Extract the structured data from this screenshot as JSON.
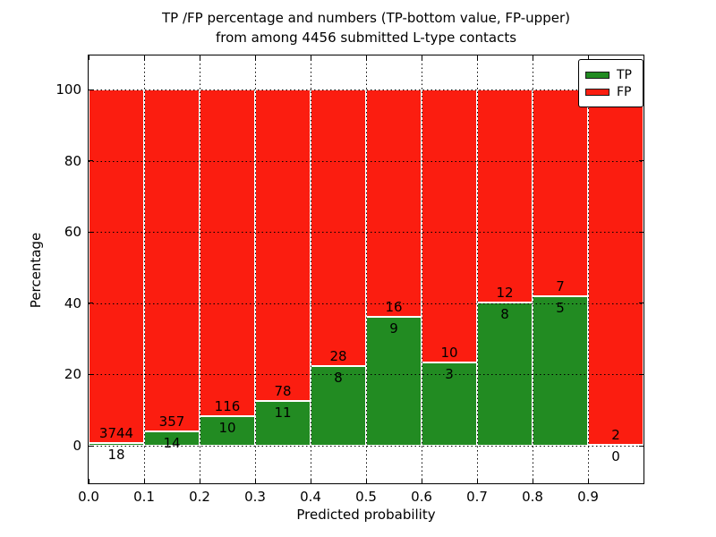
{
  "figure": {
    "title_line1": "TP /FP percentage and numbers (TP-bottom value, FP-upper)",
    "title_line2": "from among 4456 submitted L-type contacts",
    "xlabel": "Predicted probability",
    "ylabel": "Percentage"
  },
  "legend": {
    "position": "upper right",
    "items": [
      {
        "label": "TP",
        "color": "#228b22"
      },
      {
        "label": "FP",
        "color": "#fb1d10"
      }
    ]
  },
  "axis_ticks": {
    "y_labels": [
      "0",
      "20",
      "40",
      "60",
      "80",
      "100"
    ],
    "y_values": [
      0,
      20,
      40,
      60,
      80,
      100
    ],
    "x_labels": [
      "0.0",
      "0.1",
      "0.2",
      "0.3",
      "0.4",
      "0.5",
      "0.6",
      "0.7",
      "0.8",
      "0.9"
    ],
    "x_values": [
      0.0,
      0.1,
      0.2,
      0.3,
      0.4,
      0.5,
      0.6,
      0.7,
      0.8,
      0.9
    ]
  },
  "chart_data": {
    "type": "bar",
    "stacked": true,
    "normalization": "each bin scaled to 100%, green TP share on bottom, red FP share on top",
    "title": "TP /FP percentage and numbers (TP-bottom value, FP-upper) from among 4456 submitted L-type contacts",
    "xlabel": "Predicted probability",
    "ylabel": "Percentage",
    "total_contacts": 4456,
    "bin_width": 0.1,
    "bin_starts": [
      0.0,
      0.1,
      0.2,
      0.3,
      0.4,
      0.5,
      0.6,
      0.7,
      0.8,
      0.9
    ],
    "series": [
      {
        "name": "TP",
        "color": "#228b22",
        "counts": [
          18,
          14,
          10,
          11,
          8,
          9,
          3,
          8,
          5,
          0
        ]
      },
      {
        "name": "FP",
        "color": "#fb1d10",
        "counts": [
          3744,
          357,
          116,
          78,
          28,
          16,
          10,
          12,
          7,
          2
        ]
      }
    ],
    "annotations": "FP count printed above the TP/FP boundary of each bar, TP count printed below it",
    "xlim": [
      0.0,
      1.0
    ],
    "ylim": [
      -10.5,
      109.5
    ],
    "grid": "dotted black, horizontal every 20%, vertical every 0.1",
    "legend_position": "upper right"
  },
  "colors": {
    "tp": "#228b22",
    "fp": "#fb1d10",
    "bar_edge": "#ffffff",
    "grid": "#000000",
    "frame": "#000000",
    "text": "#000000",
    "background": "#ffffff"
  }
}
